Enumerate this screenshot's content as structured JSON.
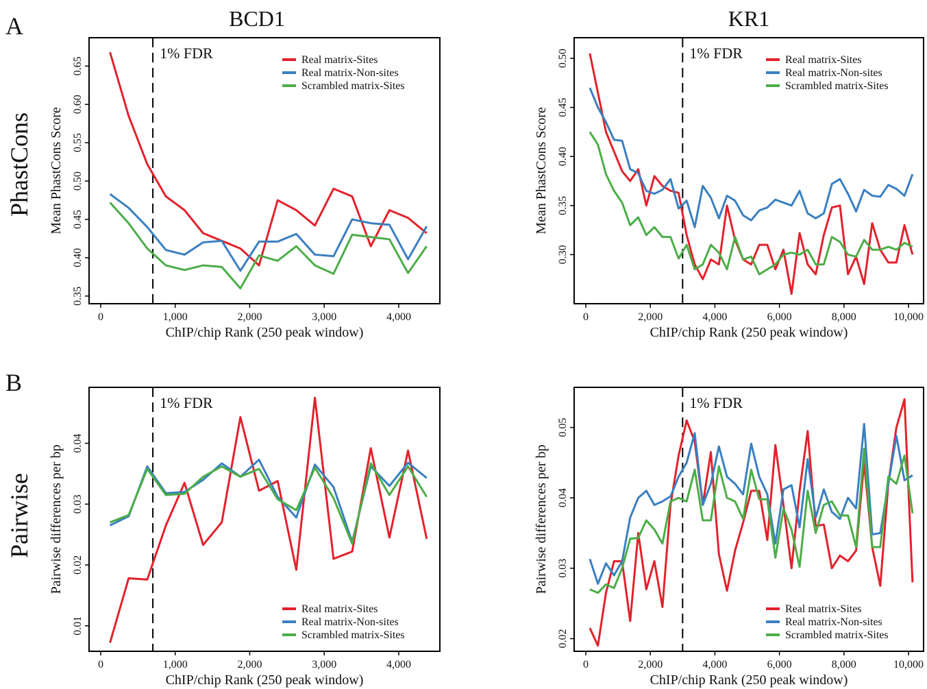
{
  "panel_labels": [
    "A",
    "B"
  ],
  "column_titles": [
    "BCD1",
    "KR1"
  ],
  "row_labels": [
    "PhastCons",
    "Pairwise"
  ],
  "chart_data": [
    {
      "type": "line",
      "xlabel": "ChIP/chip Rank (250 peak window)",
      "ylabel": "Mean PhastCons Score",
      "annotation": "1% FDR",
      "vline_x": 700,
      "legend": "upper right",
      "xlim": [
        -156,
        4552
      ],
      "ylim": [
        0.34,
        0.687
      ],
      "xticks": [
        0,
        {
          "value": 1000,
          "label": "1,000"
        },
        {
          "value": 2000,
          "label": "2,000"
        },
        {
          "value": 3000,
          "label": "3,000"
        },
        {
          "value": 4000,
          "label": "4,000"
        }
      ],
      "yticks": [
        0.35,
        {
          "value": 0.4,
          "label": "0.40"
        },
        0.45,
        {
          "value": 0.5,
          "label": "0.50"
        },
        0.55,
        {
          "value": 0.6,
          "label": "0.60"
        },
        0.65
      ],
      "x": [
        125,
        375,
        625,
        875,
        1125,
        1375,
        1625,
        1875,
        2125,
        2375,
        2625,
        2875,
        3125,
        3375,
        3625,
        3875,
        4125,
        4375
      ],
      "series": [
        {
          "name": "Real matrix-Sites",
          "color": "#e3212b",
          "values": [
            0.668,
            0.585,
            0.522,
            0.48,
            0.462,
            0.432,
            0.422,
            0.412,
            0.39,
            0.475,
            0.462,
            0.442,
            0.49,
            0.48,
            0.415,
            0.462,
            0.452,
            0.432
          ]
        },
        {
          "name": "Real matrix-Non-sites",
          "color": "#3a7fc1",
          "values": [
            0.483,
            0.465,
            0.44,
            0.41,
            0.404,
            0.42,
            0.422,
            0.383,
            0.421,
            0.421,
            0.431,
            0.404,
            0.402,
            0.45,
            0.445,
            0.443,
            0.398,
            0.441
          ]
        },
        {
          "name": "Scrambled matrix-Sites",
          "color": "#4cad48",
          "values": [
            0.472,
            0.445,
            0.412,
            0.39,
            0.384,
            0.39,
            0.388,
            0.36,
            0.403,
            0.396,
            0.415,
            0.39,
            0.379,
            0.43,
            0.427,
            0.424,
            0.38,
            0.415
          ]
        }
      ]
    },
    {
      "type": "line",
      "xlabel": "ChIP/chip Rank (250 peak window)",
      "ylabel": "Mean PhastCons Score",
      "annotation": "1% FDR",
      "vline_x": 3000,
      "legend": "upper right",
      "xlim": [
        -361,
        10467
      ],
      "ylim": [
        0.25,
        0.521
      ],
      "xticks": [
        0,
        {
          "value": 2000,
          "label": "2,000"
        },
        {
          "value": 4000,
          "label": "4,000"
        },
        {
          "value": 6000,
          "label": "6,000"
        },
        {
          "value": 8000,
          "label": "8,000"
        },
        {
          "value": 10000,
          "label": "10,000"
        }
      ],
      "yticks": [
        {
          "value": 0.3,
          "label": "0.30"
        },
        0.35,
        {
          "value": 0.4,
          "label": "0.40"
        },
        0.45,
        {
          "value": 0.5,
          "label": "0.50"
        }
      ],
      "x": [
        125,
        375,
        625,
        875,
        1125,
        1375,
        1625,
        1875,
        2125,
        2375,
        2625,
        2875,
        3125,
        3375,
        3625,
        3875,
        4125,
        4375,
        4625,
        4875,
        5125,
        5375,
        5625,
        5875,
        6125,
        6375,
        6625,
        6875,
        7125,
        7375,
        7625,
        7875,
        8125,
        8375,
        8625,
        8875,
        9125,
        9375,
        9625,
        9875,
        10125
      ],
      "series": [
        {
          "name": "Real matrix-Sites",
          "color": "#e3212b",
          "values": [
            0.505,
            0.465,
            0.425,
            0.405,
            0.385,
            0.375,
            0.387,
            0.35,
            0.38,
            0.37,
            0.365,
            0.363,
            0.32,
            0.29,
            0.275,
            0.295,
            0.29,
            0.35,
            0.315,
            0.295,
            0.29,
            0.31,
            0.31,
            0.285,
            0.305,
            0.26,
            0.322,
            0.29,
            0.28,
            0.32,
            0.348,
            0.35,
            0.28,
            0.298,
            0.27,
            0.332,
            0.305,
            0.292,
            0.292,
            0.33,
            0.3
          ]
        },
        {
          "name": "Real matrix-Non-sites",
          "color": "#3a7fc1",
          "values": [
            0.47,
            0.45,
            0.435,
            0.417,
            0.416,
            0.387,
            0.383,
            0.365,
            0.362,
            0.366,
            0.377,
            0.347,
            0.355,
            0.328,
            0.37,
            0.358,
            0.337,
            0.36,
            0.355,
            0.34,
            0.335,
            0.345,
            0.348,
            0.356,
            0.353,
            0.35,
            0.365,
            0.342,
            0.337,
            0.342,
            0.372,
            0.377,
            0.362,
            0.344,
            0.366,
            0.36,
            0.359,
            0.371,
            0.367,
            0.36,
            0.382
          ]
        },
        {
          "name": "Scrambled matrix-Sites",
          "color": "#4cad48",
          "values": [
            0.425,
            0.412,
            0.382,
            0.365,
            0.353,
            0.33,
            0.338,
            0.32,
            0.328,
            0.318,
            0.318,
            0.296,
            0.31,
            0.285,
            0.29,
            0.31,
            0.302,
            0.285,
            0.318,
            0.295,
            0.298,
            0.28,
            0.285,
            0.29,
            0.3,
            0.302,
            0.3,
            0.305,
            0.29,
            0.29,
            0.318,
            0.313,
            0.3,
            0.298,
            0.315,
            0.305,
            0.305,
            0.308,
            0.305,
            0.312,
            0.308
          ]
        }
      ]
    },
    {
      "type": "line",
      "xlabel": "ChIP/chip Rank (250 peak window)",
      "ylabel": "Pairwise differences per bp",
      "annotation": "1% FDR",
      "vline_x": 700,
      "legend": "lower right",
      "xlim": [
        -156,
        4552
      ],
      "ylim": [
        0.0058,
        0.0492
      ],
      "xticks": [
        0,
        {
          "value": 1000,
          "label": "1,000"
        },
        {
          "value": 2000,
          "label": "2,000"
        },
        {
          "value": 3000,
          "label": "3,000"
        },
        {
          "value": 4000,
          "label": "4,000"
        }
      ],
      "yticks": [
        0.01,
        0.02,
        0.03,
        0.04
      ],
      "x": [
        125,
        375,
        625,
        875,
        1125,
        1375,
        1625,
        1875,
        2125,
        2375,
        2625,
        2875,
        3125,
        3375,
        3625,
        3875,
        4125,
        4375
      ],
      "series": [
        {
          "name": "Real matrix-Sites",
          "color": "#e3212b",
          "values": [
            0.0072,
            0.0178,
            0.0176,
            0.0265,
            0.0335,
            0.0233,
            0.027,
            0.0443,
            0.0322,
            0.0338,
            0.0192,
            0.0475,
            0.021,
            0.0222,
            0.0392,
            0.0245,
            0.0388,
            0.0243
          ]
        },
        {
          "name": "Real matrix-Non-sites",
          "color": "#3a7fc1",
          "values": [
            0.0265,
            0.028,
            0.0362,
            0.0318,
            0.032,
            0.034,
            0.0367,
            0.0345,
            0.0373,
            0.0312,
            0.0278,
            0.0365,
            0.0328,
            0.0238,
            0.0362,
            0.033,
            0.0368,
            0.0343
          ]
        },
        {
          "name": "Scrambled matrix-Sites",
          "color": "#4cad48",
          "values": [
            0.027,
            0.0282,
            0.0358,
            0.0315,
            0.0317,
            0.0345,
            0.0362,
            0.0345,
            0.0358,
            0.0308,
            0.029,
            0.036,
            0.031,
            0.0235,
            0.0367,
            0.0315,
            0.0362,
            0.0312
          ]
        }
      ]
    },
    {
      "type": "line",
      "xlabel": "ChIP/chip Rank (250 peak window)",
      "ylabel": "Pairwise differences per bp",
      "annotation": "1% FDR",
      "vline_x": 3000,
      "legend": "lower right",
      "xlim": [
        -361,
        10467
      ],
      "ylim": [
        0.0182,
        0.0557
      ],
      "xticks": [
        0,
        {
          "value": 2000,
          "label": "2,000"
        },
        {
          "value": 4000,
          "label": "4,000"
        },
        {
          "value": 6000,
          "label": "6,000"
        },
        {
          "value": 8000,
          "label": "8,000"
        },
        {
          "value": 10000,
          "label": "10,000"
        }
      ],
      "yticks": [
        0.02,
        0.03,
        0.04,
        0.05
      ],
      "x": [
        125,
        375,
        625,
        875,
        1125,
        1375,
        1625,
        1875,
        2125,
        2375,
        2625,
        2875,
        3125,
        3375,
        3625,
        3875,
        4125,
        4375,
        4625,
        4875,
        5125,
        5375,
        5625,
        5875,
        6125,
        6375,
        6625,
        6875,
        7125,
        7375,
        7625,
        7875,
        8125,
        8375,
        8625,
        8875,
        9125,
        9375,
        9625,
        9875,
        10125
      ],
      "series": [
        {
          "name": "Real matrix-Sites",
          "color": "#e3212b",
          "values": [
            0.0215,
            0.019,
            0.0265,
            0.031,
            0.031,
            0.0225,
            0.035,
            0.027,
            0.031,
            0.0245,
            0.039,
            0.046,
            0.051,
            0.048,
            0.039,
            0.0465,
            0.032,
            0.0268,
            0.0325,
            0.0365,
            0.041,
            0.041,
            0.034,
            0.0475,
            0.039,
            0.03,
            0.041,
            0.0495,
            0.036,
            0.0362,
            0.03,
            0.0318,
            0.031,
            0.0325,
            0.045,
            0.033,
            0.0275,
            0.042,
            0.05,
            0.054,
            0.028
          ]
        },
        {
          "name": "Real matrix-Non-sites",
          "color": "#3a7fc1",
          "values": [
            0.0313,
            0.0278,
            0.0307,
            0.029,
            0.031,
            0.0372,
            0.04,
            0.041,
            0.039,
            0.0395,
            0.0402,
            0.043,
            0.045,
            0.0492,
            0.039,
            0.042,
            0.0473,
            0.043,
            0.042,
            0.0405,
            0.0477,
            0.043,
            0.0405,
            0.0335,
            0.0412,
            0.0418,
            0.0358,
            0.0455,
            0.0372,
            0.0412,
            0.038,
            0.037,
            0.04,
            0.0385,
            0.0505,
            0.0348,
            0.035,
            0.042,
            0.0488,
            0.0425,
            0.0432
          ]
        },
        {
          "name": "Scrambled matrix-Sites",
          "color": "#4cad48",
          "values": [
            0.027,
            0.0265,
            0.0277,
            0.0272,
            0.03,
            0.0342,
            0.0343,
            0.0368,
            0.0355,
            0.0335,
            0.0395,
            0.04,
            0.0395,
            0.044,
            0.0368,
            0.0368,
            0.0445,
            0.04,
            0.0395,
            0.037,
            0.044,
            0.0398,
            0.0398,
            0.0315,
            0.0385,
            0.0355,
            0.0302,
            0.041,
            0.035,
            0.039,
            0.0395,
            0.0375,
            0.0375,
            0.033,
            0.047,
            0.033,
            0.033,
            0.043,
            0.042,
            0.046,
            0.0378
          ]
        }
      ]
    }
  ]
}
